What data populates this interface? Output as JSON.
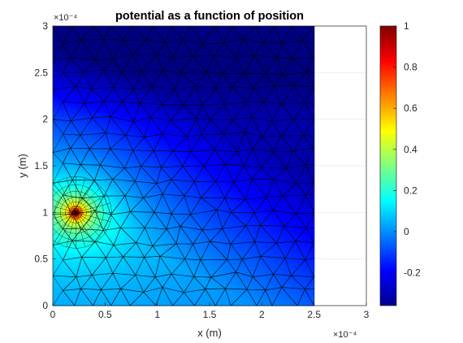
{
  "chart_data": {
    "type": "heatmap",
    "title": "potential as a function of position",
    "xlabel": "x (m)",
    "ylabel": "y (m)",
    "x_multiplier": "×10⁻⁴",
    "y_multiplier": "×10⁻⁴",
    "xlim": [
      0,
      3
    ],
    "ylim": [
      0,
      3
    ],
    "x_ticks": [
      "0",
      "0.5",
      "1",
      "1.5",
      "2",
      "2.5",
      "3"
    ],
    "y_ticks": [
      "0",
      "0.5",
      "1",
      "1.5",
      "2",
      "2.5",
      "3"
    ],
    "domain": {
      "x": [
        0,
        2.5
      ],
      "y": [
        0,
        3
      ]
    },
    "source_point": {
      "x": 0.22,
      "y": 1.0,
      "value": 1.0
    },
    "colorbar": {
      "range": [
        -0.36,
        1.0
      ],
      "ticks": [
        "-0.2",
        "0",
        "0.2",
        "0.4",
        "0.6",
        "0.8",
        "1"
      ],
      "colormap": "jet"
    },
    "grid": true,
    "mesh": "triangular, dense near source"
  }
}
